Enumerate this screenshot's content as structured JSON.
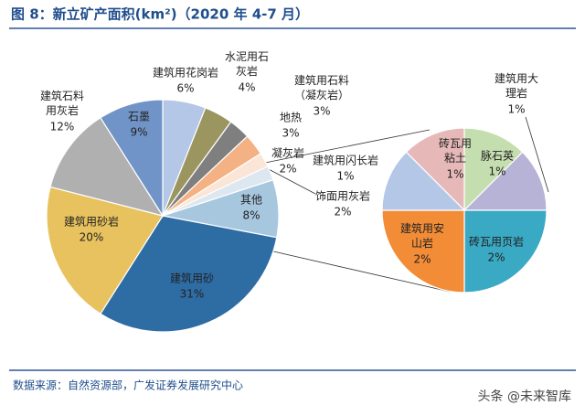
{
  "title": "图 8：新立矿产面积(km²)（2020 年 4-7 月）",
  "source": "数据来源：自然资源部，广发证券发展研究中心",
  "watermark": "头条 @未来智库",
  "chart_data": [
    {
      "type": "pie",
      "categories": [
        "建筑用花岗岩",
        "水泥用石灰岩",
        "建筑用石料（凝灰岩）",
        "地热",
        "凝灰岩",
        "饰面用灰岩",
        "其他",
        "建筑用砂",
        "建筑用砂岩",
        "建筑石料用灰岩",
        "石墨"
      ],
      "values": [
        6,
        4,
        3,
        3,
        2,
        2,
        8,
        31,
        20,
        12,
        9
      ],
      "value_labels": [
        "6%",
        "4%",
        "3%",
        "3%",
        "2%",
        "2%",
        "8%",
        "31%",
        "20%",
        "12%",
        "9%"
      ],
      "colors": [
        "#b4c7e7",
        "#9b9560",
        "#7f7f7f",
        "#f4b183",
        "#fbe5d6",
        "#dde7f0",
        "#a7c7df",
        "#2e6ca4",
        "#e8c25e",
        "#b0b0b0",
        "#7094c8"
      ]
    },
    {
      "type": "pie",
      "categories": [
        "砖瓦用粘土",
        "脉石英",
        "建筑用大理岩",
        "砖瓦用页岩",
        "建筑用安山岩",
        "建筑用闪长岩"
      ],
      "values": [
        1,
        1,
        1,
        2,
        2,
        1
      ],
      "value_labels": [
        "1%",
        "1%",
        "1%",
        "2%",
        "2%",
        "1%"
      ],
      "colors": [
        "#e6b9b8",
        "#c5deb0",
        "#b7b3d6",
        "#3aa9c4",
        "#f28c36",
        "#b4c7e7"
      ]
    }
  ]
}
